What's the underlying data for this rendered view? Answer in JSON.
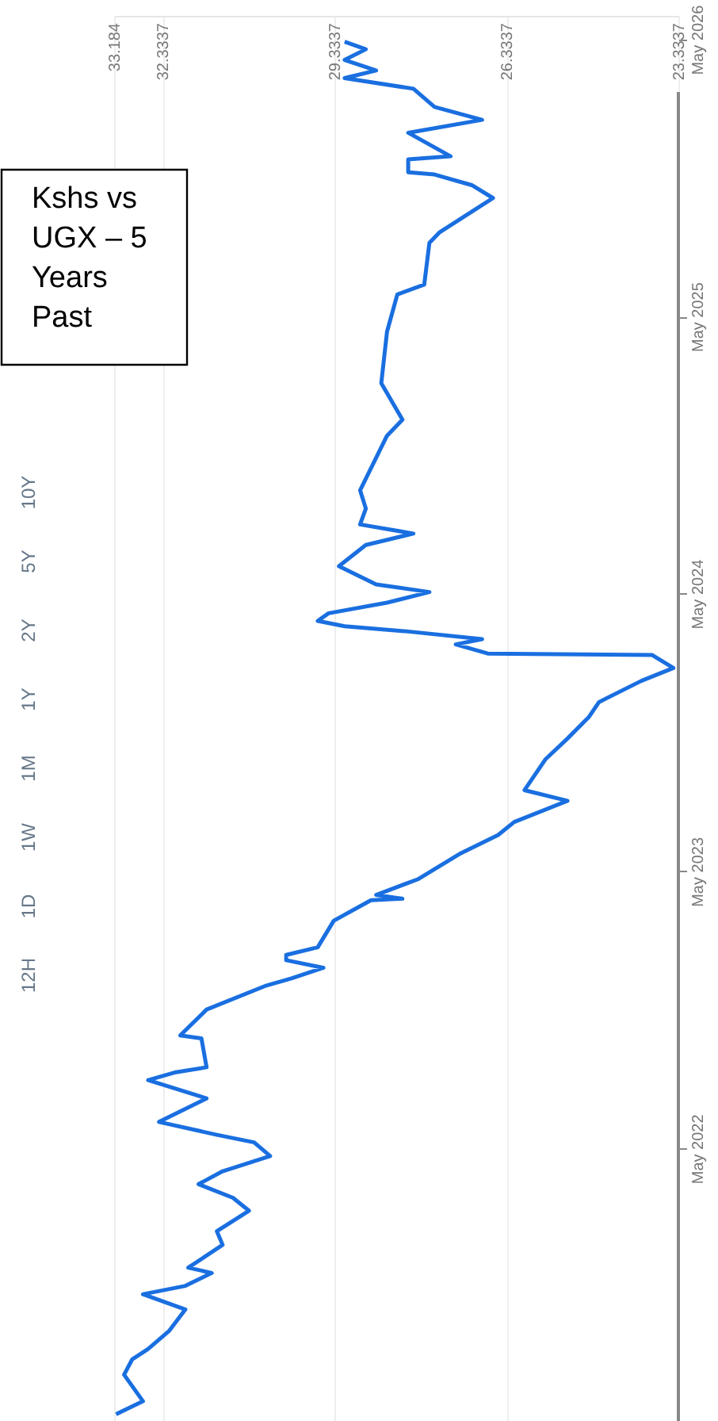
{
  "chart_data": {
    "type": "line",
    "title": "Kshs vs UGX – 5 Years Past",
    "annotations": [
      "12H",
      "1D",
      "1W",
      "1M",
      "1Y",
      "2Y",
      "5Y",
      "10Y"
    ],
    "x": [
      "2021-05-30",
      "2021-06-16",
      "2021-07-21",
      "2021-08-10",
      "2021-08-24",
      "2021-09-17",
      "2021-10-15",
      "2021-11-04",
      "2021-11-15",
      "2021-12-02",
      "2021-12-09",
      "2022-01-08",
      "2022-01-26",
      "2022-02-22",
      "2022-03-11",
      "2022-03-29",
      "2022-04-15",
      "2022-05-05",
      "2022-05-23",
      "2022-06-02",
      "2022-06-19",
      "2022-07-20",
      "2022-08-13",
      "2022-08-23",
      "2022-08-30",
      "2022-10-07",
      "2022-10-11",
      "2022-11-14",
      "2022-12-15",
      "2022-12-25",
      "2023-01-08",
      "2023-01-18",
      "2023-01-25",
      "2023-02-04",
      "2023-03-11",
      "2023-04-07",
      "2023-04-09",
      "2023-04-14",
      "2023-05-05",
      "2023-06-08",
      "2023-07-02",
      "2023-07-19",
      "2023-08-16",
      "2023-08-30",
      "2023-10-10",
      "2023-11-06",
      "2023-12-04",
      "2023-12-24",
      "2024-01-21",
      "2024-02-07",
      "2024-02-24",
      "2024-02-26",
      "2024-03-09",
      "2024-03-16",
      "2024-03-26",
      "2024-04-02",
      "2024-04-09",
      "2024-04-19",
      "2024-05-03",
      "2024-05-17",
      "2024-05-27",
      "2024-06-20",
      "2024-07-18",
      "2024-08-02",
      "2024-08-14",
      "2024-09-04",
      "2024-09-28",
      "2024-12-09",
      "2024-12-30",
      "2025-02-16",
      "2025-04-25",
      "2025-06-13",
      "2025-06-26",
      "2025-08-20",
      "2025-09-03",
      "2025-10-18",
      "2025-11-04",
      "2025-11-18",
      "2025-11-21",
      "2025-12-08",
      "2025-12-12",
      "2026-01-12",
      "2026-01-29",
      "2026-02-15",
      "2026-03-11",
      "2026-03-25",
      "2026-04-04",
      "2026-04-18",
      "2026-05-02",
      "2026-05-12"
    ],
    "series": [
      {
        "color": "#1a6fe0",
        "values": [
          33.15,
          32.68,
          33.01,
          32.87,
          32.59,
          32.22,
          31.94,
          32.68,
          31.94,
          31.48,
          31.89,
          31.29,
          31.39,
          30.83,
          31.11,
          31.71,
          31.29,
          30.46,
          30.74,
          31.39,
          32.4,
          31.57,
          32.59,
          32.13,
          31.57,
          31.66,
          32.03,
          31.57,
          30.55,
          30.09,
          29.53,
          30.18,
          30.18,
          29.63,
          29.35,
          28.7,
          28.15,
          28.61,
          27.87,
          27.13,
          26.48,
          26.2,
          25.27,
          26.02,
          25.65,
          25.27,
          24.9,
          24.72,
          23.98,
          23.42,
          23.79,
          26.66,
          27.22,
          26.76,
          28.05,
          29.16,
          29.63,
          29.44,
          28.42,
          27.68,
          28.61,
          29.26,
          28.79,
          27.96,
          28.89,
          28.79,
          28.89,
          28.42,
          28.15,
          28.52,
          28.42,
          28.24,
          27.77,
          27.68,
          27.5,
          26.57,
          26.94,
          27.59,
          28.05,
          28.05,
          27.31,
          28.05,
          26.76,
          27.59,
          27.96,
          29.16,
          28.61,
          29.16,
          28.79,
          29.16
        ]
      }
    ],
    "orientation": "horizontal",
    "ylim": [
      "2021-05-21",
      "2026-06-15"
    ],
    "yticks": [
      {
        "value": "2022-05-15",
        "label": "May 2022"
      },
      {
        "value": "2023-05-15",
        "label": "May 2023"
      },
      {
        "value": "2024-05-15",
        "label": "May 2024"
      },
      {
        "value": "2025-05-15",
        "label": "May 2025"
      },
      {
        "value": "2026-05-15",
        "label": "May 2026"
      }
    ],
    "xlim": [
      33.184,
      23.3337
    ],
    "xticks": [
      23.3337,
      26.3337,
      29.3337,
      32.3337,
      33.184
    ],
    "grid": "x",
    "marker": "none",
    "line_style": "solid"
  }
}
